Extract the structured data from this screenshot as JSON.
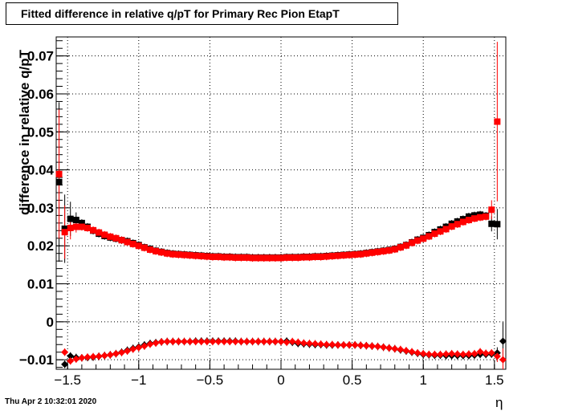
{
  "title": "Fitted difference in relative q/pT for Primary Rec Pion EtapT",
  "datestamp": "Thu Apr  2 10:32:01 2020",
  "chart_data": {
    "type": "scatter",
    "title": "Fitted difference in relative q/pT for Primary Rec Pion EtapT",
    "xlabel": "η",
    "ylabel": "difference in relative q/pT",
    "xlim": [
      -1.58,
      1.58
    ],
    "ylim": [
      -0.0125,
      0.075
    ],
    "grid": true,
    "xticks": [
      -1.5,
      -1,
      -0.5,
      0,
      0.5,
      1,
      1.5
    ],
    "xtick_labels": [
      "−1.5",
      "−1",
      "−0.5",
      "0",
      "0.5",
      "1",
      "1.5"
    ],
    "yticks": [
      -0.01,
      0,
      0.01,
      0.02,
      0.03,
      0.04,
      0.05,
      0.06,
      0.07
    ],
    "ytick_labels": [
      "−0.01",
      "0",
      "0.01",
      "0.02",
      "0.03",
      "0.04",
      "0.05",
      "0.06",
      "0.07"
    ],
    "x": [
      -1.56,
      -1.52,
      -1.48,
      -1.44,
      -1.4,
      -1.36,
      -1.32,
      -1.28,
      -1.24,
      -1.2,
      -1.16,
      -1.12,
      -1.08,
      -1.04,
      -1.0,
      -0.96,
      -0.92,
      -0.88,
      -0.84,
      -0.8,
      -0.76,
      -0.72,
      -0.68,
      -0.64,
      -0.6,
      -0.56,
      -0.52,
      -0.48,
      -0.44,
      -0.4,
      -0.36,
      -0.32,
      -0.28,
      -0.24,
      -0.2,
      -0.16,
      -0.12,
      -0.08,
      -0.04,
      0.0,
      0.04,
      0.08,
      0.12,
      0.16,
      0.2,
      0.24,
      0.28,
      0.32,
      0.36,
      0.4,
      0.44,
      0.48,
      0.52,
      0.56,
      0.6,
      0.64,
      0.68,
      0.72,
      0.76,
      0.8,
      0.84,
      0.88,
      0.92,
      0.96,
      1.0,
      1.04,
      1.08,
      1.12,
      1.16,
      1.2,
      1.24,
      1.28,
      1.32,
      1.36,
      1.4,
      1.44,
      1.48,
      1.52,
      1.56
    ],
    "series": [
      {
        "marker": "square",
        "color": "#000000",
        "values": [
          0.0368,
          0.0245,
          0.0271,
          0.0268,
          0.026,
          0.025,
          0.024,
          0.0232,
          0.0226,
          0.0222,
          0.0219,
          0.0215,
          0.0212,
          0.0207,
          0.0202,
          0.0196,
          0.0192,
          0.0187,
          0.0184,
          0.0181,
          0.0179,
          0.0178,
          0.0177,
          0.0176,
          0.0175,
          0.0174,
          0.0173,
          0.0172,
          0.0172,
          0.0171,
          0.0171,
          0.017,
          0.017,
          0.017,
          0.0169,
          0.0169,
          0.0169,
          0.0169,
          0.0169,
          0.0169,
          0.017,
          0.017,
          0.017,
          0.0171,
          0.0171,
          0.0172,
          0.0172,
          0.0173,
          0.0174,
          0.0175,
          0.0176,
          0.0177,
          0.0178,
          0.0179,
          0.0181,
          0.0183,
          0.0185,
          0.0187,
          0.0189,
          0.0192,
          0.0197,
          0.0202,
          0.0209,
          0.0216,
          0.0221,
          0.0228,
          0.0236,
          0.0243,
          0.025,
          0.0258,
          0.0264,
          0.027,
          0.0277,
          0.028,
          0.0282,
          0.0279,
          0.0258,
          0.0257,
          null
        ],
        "errors": [
          0.021,
          0.009,
          0.0045,
          0.002,
          0.001,
          0.001,
          0.001,
          0.001,
          0.001,
          0.001,
          0.001,
          0.001,
          0.001,
          0.001,
          0.001,
          0.001,
          0.001,
          0.001,
          0.001,
          0.001,
          0.001,
          0.001,
          0.001,
          0.001,
          0.001,
          0.001,
          0.001,
          0.001,
          0.001,
          0.001,
          0.001,
          0.001,
          0.001,
          0.001,
          0.001,
          0.001,
          0.001,
          0.001,
          0.001,
          0.001,
          0.001,
          0.001,
          0.001,
          0.001,
          0.001,
          0.001,
          0.001,
          0.001,
          0.001,
          0.001,
          0.001,
          0.001,
          0.001,
          0.001,
          0.001,
          0.001,
          0.001,
          0.001,
          0.001,
          0.001,
          0.001,
          0.001,
          0.001,
          0.001,
          0.001,
          0.001,
          0.001,
          0.001,
          0.001,
          0.001,
          0.001,
          0.001,
          0.001,
          0.001,
          0.001,
          0.001,
          0.002,
          0.004,
          0
        ]
      },
      {
        "marker": "square",
        "color": "#ff0000",
        "values": [
          0.0389,
          0.0236,
          0.0247,
          0.025,
          0.025,
          0.0247,
          0.0241,
          0.0235,
          0.0229,
          0.0224,
          0.022,
          0.0215,
          0.021,
          0.0205,
          0.02,
          0.0195,
          0.019,
          0.0186,
          0.0183,
          0.018,
          0.0178,
          0.0177,
          0.0176,
          0.0175,
          0.0174,
          0.0173,
          0.0172,
          0.0171,
          0.0171,
          0.017,
          0.017,
          0.0169,
          0.0169,
          0.0169,
          0.0168,
          0.0168,
          0.0168,
          0.0168,
          0.0168,
          0.0168,
          0.0169,
          0.0169,
          0.0169,
          0.017,
          0.017,
          0.0171,
          0.0171,
          0.0172,
          0.0173,
          0.0174,
          0.0175,
          0.0176,
          0.0177,
          0.0178,
          0.018,
          0.0182,
          0.0184,
          0.0186,
          0.0188,
          0.0191,
          0.0196,
          0.0201,
          0.0208,
          0.0214,
          0.0219,
          0.0225,
          0.0232,
          0.0238,
          0.0244,
          0.0251,
          0.0257,
          0.0263,
          0.0268,
          0.0272,
          0.0275,
          0.0277,
          0.0295,
          0.0527,
          null
        ],
        "errors": [
          0.017,
          0.007,
          0.003,
          0.0015,
          0.001,
          0.001,
          0.001,
          0.001,
          0.001,
          0.001,
          0.001,
          0.001,
          0.001,
          0.001,
          0.001,
          0.001,
          0.001,
          0.001,
          0.001,
          0.001,
          0.001,
          0.001,
          0.001,
          0.001,
          0.001,
          0.001,
          0.001,
          0.001,
          0.001,
          0.001,
          0.001,
          0.001,
          0.001,
          0.001,
          0.001,
          0.001,
          0.001,
          0.001,
          0.001,
          0.001,
          0.001,
          0.001,
          0.001,
          0.001,
          0.001,
          0.001,
          0.001,
          0.001,
          0.001,
          0.001,
          0.001,
          0.001,
          0.001,
          0.001,
          0.001,
          0.001,
          0.001,
          0.001,
          0.001,
          0.001,
          0.001,
          0.001,
          0.001,
          0.001,
          0.001,
          0.001,
          0.001,
          0.001,
          0.001,
          0.001,
          0.001,
          0.001,
          0.001,
          0.001,
          0.001,
          0.001,
          0.0025,
          0.021,
          0
        ]
      },
      {
        "marker": "diamond",
        "color": "#000000",
        "values": [
          null,
          -0.0112,
          -0.009,
          -0.0094,
          -0.0095,
          -0.0094,
          -0.0093,
          -0.0091,
          -0.0089,
          -0.0087,
          -0.0084,
          -0.008,
          -0.0075,
          -0.007,
          -0.0066,
          -0.0061,
          -0.0057,
          -0.0055,
          -0.0053,
          -0.0052,
          -0.0052,
          -0.0052,
          -0.0052,
          -0.0052,
          -0.0051,
          -0.0051,
          -0.0051,
          -0.0051,
          -0.0051,
          -0.0051,
          -0.0051,
          -0.0051,
          -0.0052,
          -0.0052,
          -0.0052,
          -0.0052,
          -0.0052,
          -0.0052,
          -0.0052,
          -0.0052,
          -0.0051,
          -0.0054,
          -0.0057,
          -0.0058,
          -0.0059,
          -0.006,
          -0.006,
          -0.0061,
          -0.0061,
          -0.0061,
          -0.0061,
          -0.0061,
          -0.0061,
          -0.0062,
          -0.0063,
          -0.0064,
          -0.0065,
          -0.0067,
          -0.0069,
          -0.0071,
          -0.0074,
          -0.0077,
          -0.008,
          -0.0083,
          -0.0086,
          -0.0087,
          -0.0088,
          -0.0088,
          -0.0089,
          -0.0089,
          -0.0089,
          -0.0089,
          -0.0089,
          -0.0088,
          -0.0086,
          -0.0086,
          -0.0085,
          -0.0082,
          -0.0051
        ],
        "errors": [
          0,
          0.001,
          0.001,
          0.001,
          0.001,
          0.001,
          0.001,
          0.001,
          0.001,
          0.001,
          0.001,
          0.001,
          0.001,
          0.001,
          0.001,
          0.001,
          0.001,
          0.001,
          0.001,
          0.001,
          0.001,
          0.001,
          0.001,
          0.001,
          0.001,
          0.001,
          0.001,
          0.001,
          0.001,
          0.001,
          0.001,
          0.001,
          0.001,
          0.001,
          0.001,
          0.001,
          0.001,
          0.001,
          0.001,
          0.001,
          0.001,
          0.001,
          0.001,
          0.001,
          0.001,
          0.001,
          0.001,
          0.001,
          0.001,
          0.001,
          0.001,
          0.001,
          0.001,
          0.001,
          0.001,
          0.001,
          0.001,
          0.001,
          0.001,
          0.001,
          0.001,
          0.001,
          0.001,
          0.001,
          0.001,
          0.001,
          0.001,
          0.001,
          0.001,
          0.001,
          0.001,
          0.001,
          0.001,
          0.001,
          0.001,
          0.001,
          0.001,
          0.0015,
          0.005
        ]
      },
      {
        "marker": "diamond",
        "color": "#ff0000",
        "values": [
          null,
          -0.008,
          -0.0103,
          -0.0098,
          -0.0095,
          -0.0093,
          -0.0092,
          -0.0091,
          -0.0089,
          -0.0087,
          -0.0084,
          -0.0081,
          -0.0077,
          -0.0072,
          -0.0068,
          -0.0064,
          -0.0059,
          -0.0056,
          -0.0053,
          -0.0052,
          -0.0052,
          -0.0052,
          -0.0052,
          -0.0052,
          -0.0052,
          -0.0052,
          -0.0052,
          -0.0052,
          -0.0052,
          -0.0052,
          -0.0052,
          -0.0052,
          -0.0052,
          -0.0052,
          -0.0052,
          -0.0052,
          -0.0052,
          -0.0052,
          -0.0052,
          -0.0052,
          -0.0054,
          -0.0052,
          -0.0054,
          -0.0056,
          -0.0057,
          -0.0058,
          -0.0059,
          -0.006,
          -0.006,
          -0.0061,
          -0.0061,
          -0.0061,
          -0.0061,
          -0.0062,
          -0.0063,
          -0.0064,
          -0.0065,
          -0.0067,
          -0.0069,
          -0.0071,
          -0.0073,
          -0.0076,
          -0.0079,
          -0.0082,
          -0.0084,
          -0.0086,
          -0.0086,
          -0.0086,
          -0.0085,
          -0.0084,
          -0.0085,
          -0.0086,
          -0.0085,
          -0.0084,
          -0.0079,
          -0.0083,
          -0.0082,
          -0.0091,
          -0.01
        ],
        "errors": [
          0,
          0.001,
          0.001,
          0.001,
          0.001,
          0.001,
          0.001,
          0.001,
          0.001,
          0.001,
          0.001,
          0.001,
          0.001,
          0.001,
          0.001,
          0.001,
          0.001,
          0.001,
          0.001,
          0.001,
          0.001,
          0.001,
          0.001,
          0.001,
          0.001,
          0.001,
          0.001,
          0.001,
          0.001,
          0.001,
          0.001,
          0.001,
          0.001,
          0.001,
          0.001,
          0.001,
          0.001,
          0.001,
          0.001,
          0.001,
          0.001,
          0.001,
          0.001,
          0.001,
          0.001,
          0.001,
          0.001,
          0.001,
          0.001,
          0.001,
          0.001,
          0.001,
          0.001,
          0.001,
          0.001,
          0.001,
          0.001,
          0.001,
          0.001,
          0.001,
          0.001,
          0.001,
          0.001,
          0.001,
          0.001,
          0.001,
          0.001,
          0.001,
          0.001,
          0.001,
          0.001,
          0.001,
          0.001,
          0.001,
          0.001,
          0.001,
          0.001,
          0.0015,
          0.003
        ]
      }
    ]
  }
}
